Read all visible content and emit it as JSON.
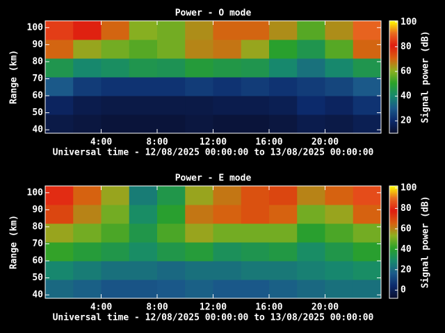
{
  "chart_data": [
    {
      "type": "heatmap",
      "title": "Power - O mode",
      "y_label": "Range (km)",
      "x_label": "Universal time - 12/08/2025 00:00:00 to 13/08/2025 00:00:00",
      "colorbar_label": "Signal power (dB)",
      "x_bins": [
        0,
        2,
        4,
        6,
        8,
        10,
        12,
        14,
        16,
        18,
        20,
        22,
        24
      ],
      "y_bins": [
        38,
        49,
        60,
        71,
        82,
        93,
        104
      ],
      "values": [
        [
          14,
          13,
          12,
          12,
          12,
          13,
          12,
          12,
          13,
          15,
          14,
          16
        ],
        [
          18,
          15,
          14,
          14,
          14,
          14,
          15,
          15,
          16,
          20,
          18,
          22
        ],
        [
          30,
          24,
          22,
          22,
          22,
          24,
          22,
          24,
          22,
          24,
          26,
          30
        ],
        [
          45,
          40,
          42,
          45,
          44,
          48,
          46,
          45,
          40,
          35,
          40,
          45
        ],
        [
          70,
          62,
          58,
          55,
          58,
          66,
          68,
          62,
          50,
          45,
          55,
          70
        ],
        [
          85,
          80,
          70,
          60,
          58,
          65,
          70,
          70,
          65,
          55,
          65,
          90
        ]
      ],
      "xlim": [
        0,
        24
      ],
      "xticks": [
        {
          "value": 4,
          "label": "4:00"
        },
        {
          "value": 8,
          "label": "8:00"
        },
        {
          "value": 12,
          "label": "12:00"
        },
        {
          "value": 16,
          "label": "16:00"
        },
        {
          "value": 20,
          "label": "20:00"
        }
      ],
      "ylim": [
        38,
        104
      ],
      "yticks": [
        40,
        50,
        60,
        70,
        80,
        90,
        100
      ],
      "clim": [
        10,
        101
      ],
      "cticks": [
        20,
        40,
        60,
        80,
        100
      ],
      "colormap": [
        "#0a0f2e",
        "#0c2a6c",
        "#1b5a8a",
        "#178a6c",
        "#2aa12a",
        "#8cb020",
        "#d86010",
        "#e01c10",
        "#e86a20",
        "#ffff00"
      ]
    },
    {
      "type": "heatmap",
      "title": "Power - E mode",
      "y_label": "Range (km)",
      "x_label": "Universal time - 12/08/2025 00:00:00 to 13/08/2025 00:00:00",
      "colorbar_label": "Signal power (dB)",
      "x_bins": [
        0,
        2,
        4,
        6,
        8,
        10,
        12,
        14,
        16,
        18,
        20,
        22,
        24
      ],
      "y_bins": [
        38,
        49,
        60,
        71,
        82,
        93,
        104
      ],
      "values": [
        [
          20,
          18,
          15,
          15,
          16,
          18,
          16,
          16,
          18,
          20,
          22,
          22
        ],
        [
          28,
          25,
          22,
          22,
          20,
          22,
          22,
          24,
          24,
          26,
          28,
          30
        ],
        [
          42,
          38,
          35,
          30,
          35,
          38,
          32,
          34,
          36,
          30,
          35,
          40
        ],
        [
          55,
          50,
          45,
          35,
          45,
          55,
          50,
          50,
          50,
          40,
          45,
          50
        ],
        [
          70,
          60,
          50,
          30,
          40,
          62,
          65,
          68,
          65,
          50,
          55,
          65
        ],
        [
          80,
          65,
          55,
          25,
          35,
          55,
          62,
          68,
          70,
          60,
          65,
          85
        ]
      ],
      "xlim": [
        0,
        24
      ],
      "xticks": [
        {
          "value": 4,
          "label": "4:00"
        },
        {
          "value": 8,
          "label": "8:00"
        },
        {
          "value": 12,
          "label": "12:00"
        },
        {
          "value": 16,
          "label": "16:00"
        },
        {
          "value": 20,
          "label": "20:00"
        }
      ],
      "ylim": [
        38,
        104
      ],
      "yticks": [
        40,
        50,
        60,
        70,
        80,
        90,
        100
      ],
      "clim": [
        -8,
        102
      ],
      "cticks": [
        0,
        20,
        40,
        60,
        80,
        100
      ],
      "colormap": [
        "#0a0f2e",
        "#0c2a6c",
        "#1b5a8a",
        "#178a6c",
        "#2aa12a",
        "#8cb020",
        "#d86010",
        "#e01c10",
        "#e86a20",
        "#ffff00"
      ]
    }
  ]
}
